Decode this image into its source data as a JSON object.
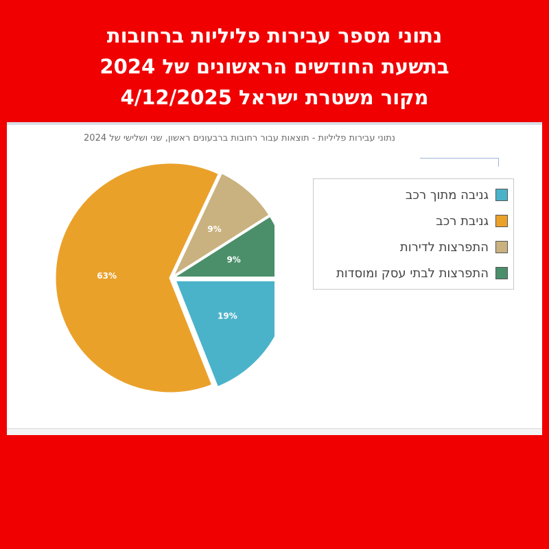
{
  "headline": {
    "line1": "נתוני מספר עבירות פליליות ברחובות",
    "line2": "בתשעת החודשים הראשונים של 2024",
    "line3": "מקור משטרת ישראל  4/12/2025"
  },
  "chart_data": {
    "type": "pie",
    "title": "נתוני עבירות פליליות - תוצאות עבור רחובות ברבעונים ראשון, שני ושלישי של 2024",
    "slices": [
      {
        "name": "גניבה מתוך רכב",
        "value": 19,
        "label": "19%",
        "color": "#4bb3c9"
      },
      {
        "name": "גניבת רכב",
        "value": 63,
        "label": "63%",
        "color": "#eaa12a"
      },
      {
        "name": "התפרצות לדירות",
        "value": 9,
        "label": "9%",
        "color": "#c9b27f"
      },
      {
        "name": "התפרצות לבתי עסק ומוסדות",
        "value": 9,
        "label": "9%",
        "color": "#4a8f6a"
      }
    ],
    "legend_position": "right"
  },
  "colors": {
    "background": "#f00000",
    "panel": "#ffffff"
  }
}
